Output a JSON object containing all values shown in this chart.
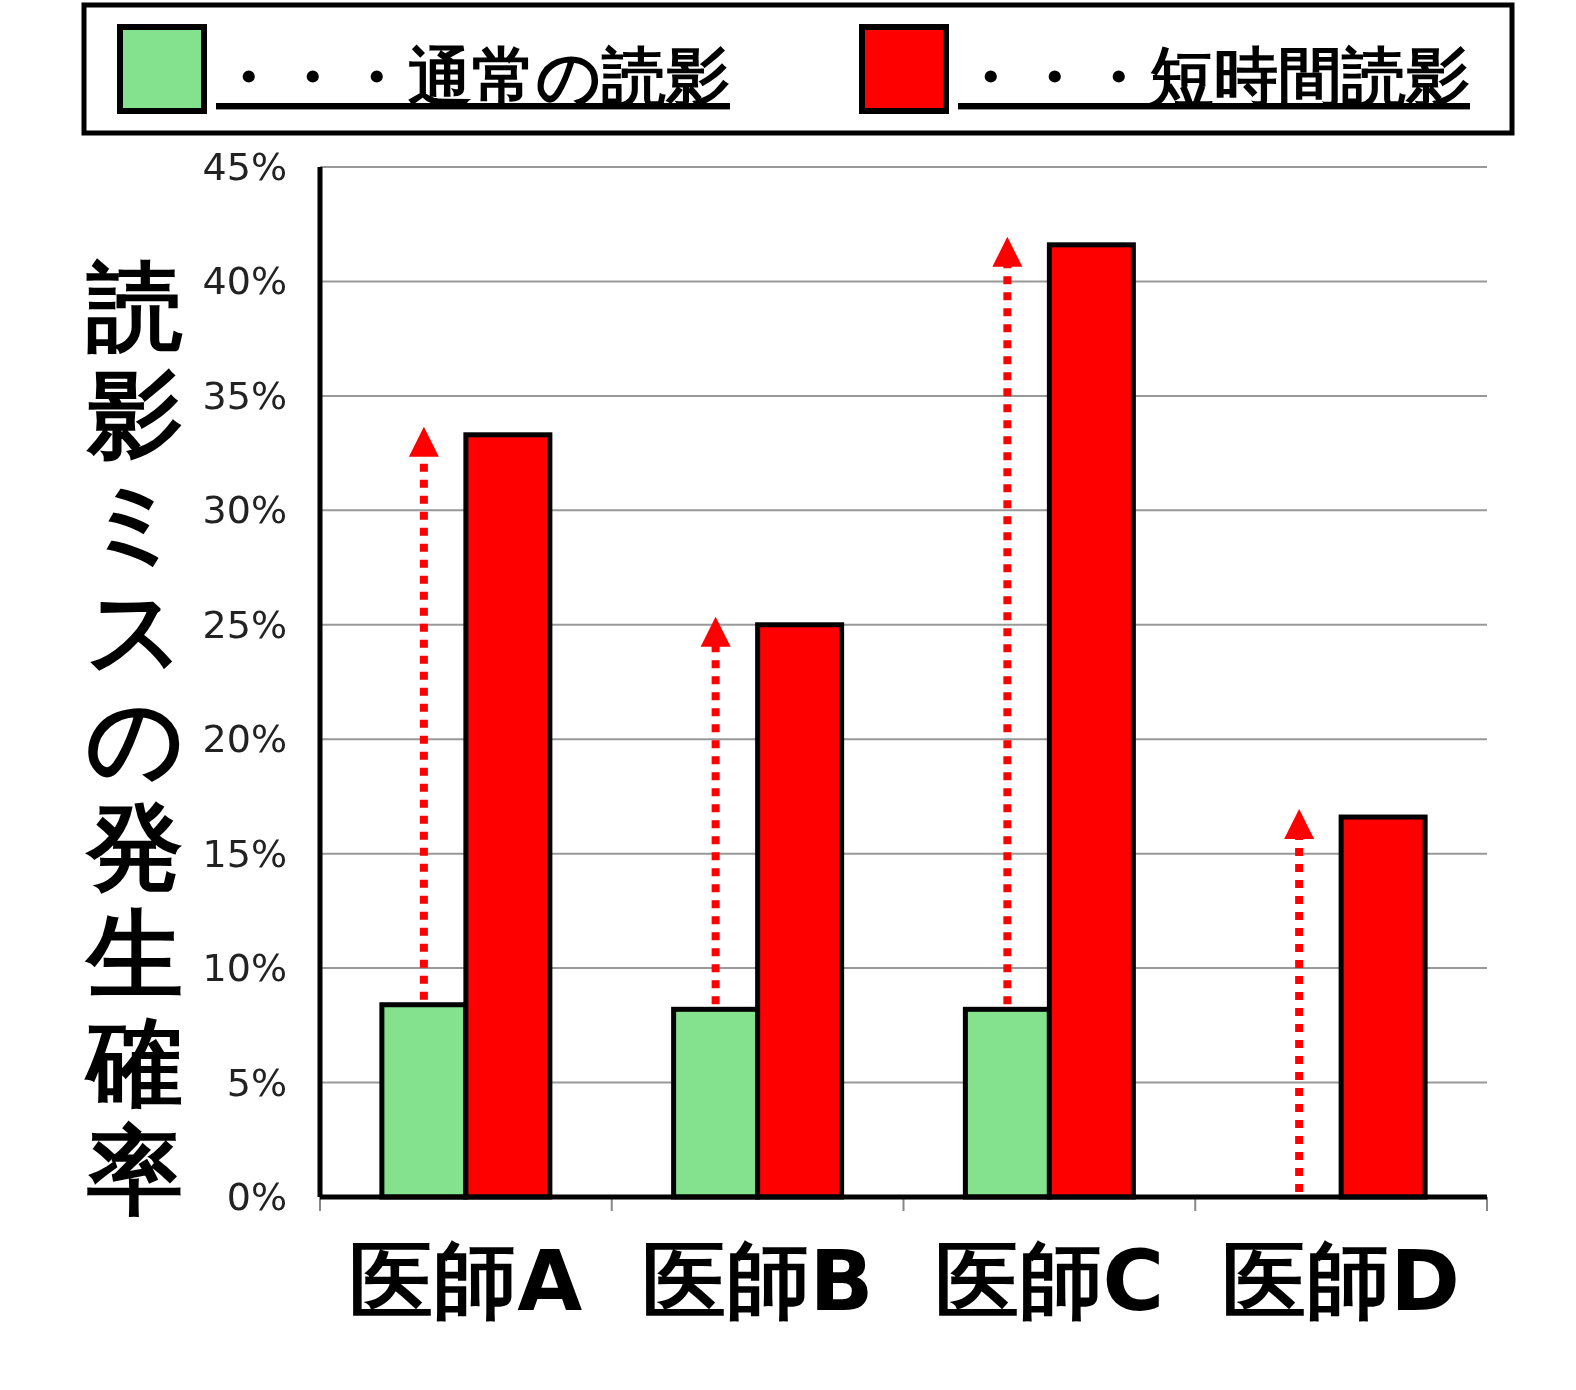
{
  "chart_data": {
    "type": "bar",
    "ylabel": "読影ミスの発生確率",
    "categories": [
      "医師A",
      "医師B",
      "医師C",
      "医師D"
    ],
    "series": [
      {
        "name": "・・・通常の読影",
        "color": "#84e18e",
        "values": [
          8.4,
          8.2,
          8.2,
          0
        ]
      },
      {
        "name": "・・・短時間読影",
        "color": "#ff0000",
        "values": [
          33.3,
          25,
          41.6,
          16.6
        ]
      }
    ],
    "ylim": [
      0,
      45
    ],
    "yticks": [
      {
        "value": 0,
        "label": "0%"
      },
      {
        "value": 5,
        "label": "5%"
      },
      {
        "value": 10,
        "label": "10%"
      },
      {
        "value": 15,
        "label": "15%"
      },
      {
        "value": 20,
        "label": "20%"
      },
      {
        "value": 25,
        "label": "25%"
      },
      {
        "value": 30,
        "label": "30%"
      },
      {
        "value": 35,
        "label": "35%"
      },
      {
        "value": 40,
        "label": "40%"
      },
      {
        "value": 45,
        "label": "45%"
      }
    ],
    "grid": "y",
    "legend": "top"
  }
}
